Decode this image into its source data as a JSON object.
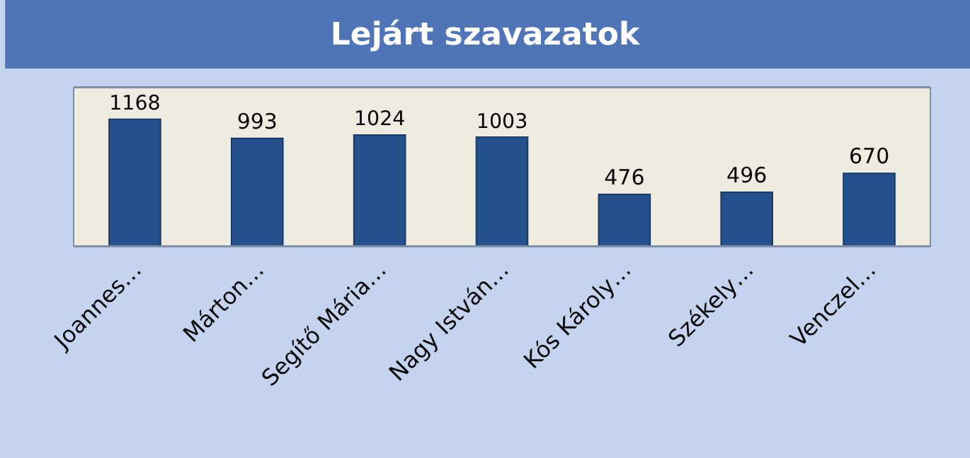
{
  "chart_data": {
    "type": "bar",
    "title": "Lejárt szavazatok",
    "categories": [
      "Joannes…",
      "Márton…",
      "Segítő Mária…",
      "Nagy István…",
      "Kós Károly…",
      "Székely…",
      "Venczel…"
    ],
    "values": [
      1168,
      993,
      1024,
      1003,
      476,
      496,
      670
    ],
    "color": "#24508c",
    "data_labels": true,
    "grid": false,
    "legend": false
  }
}
